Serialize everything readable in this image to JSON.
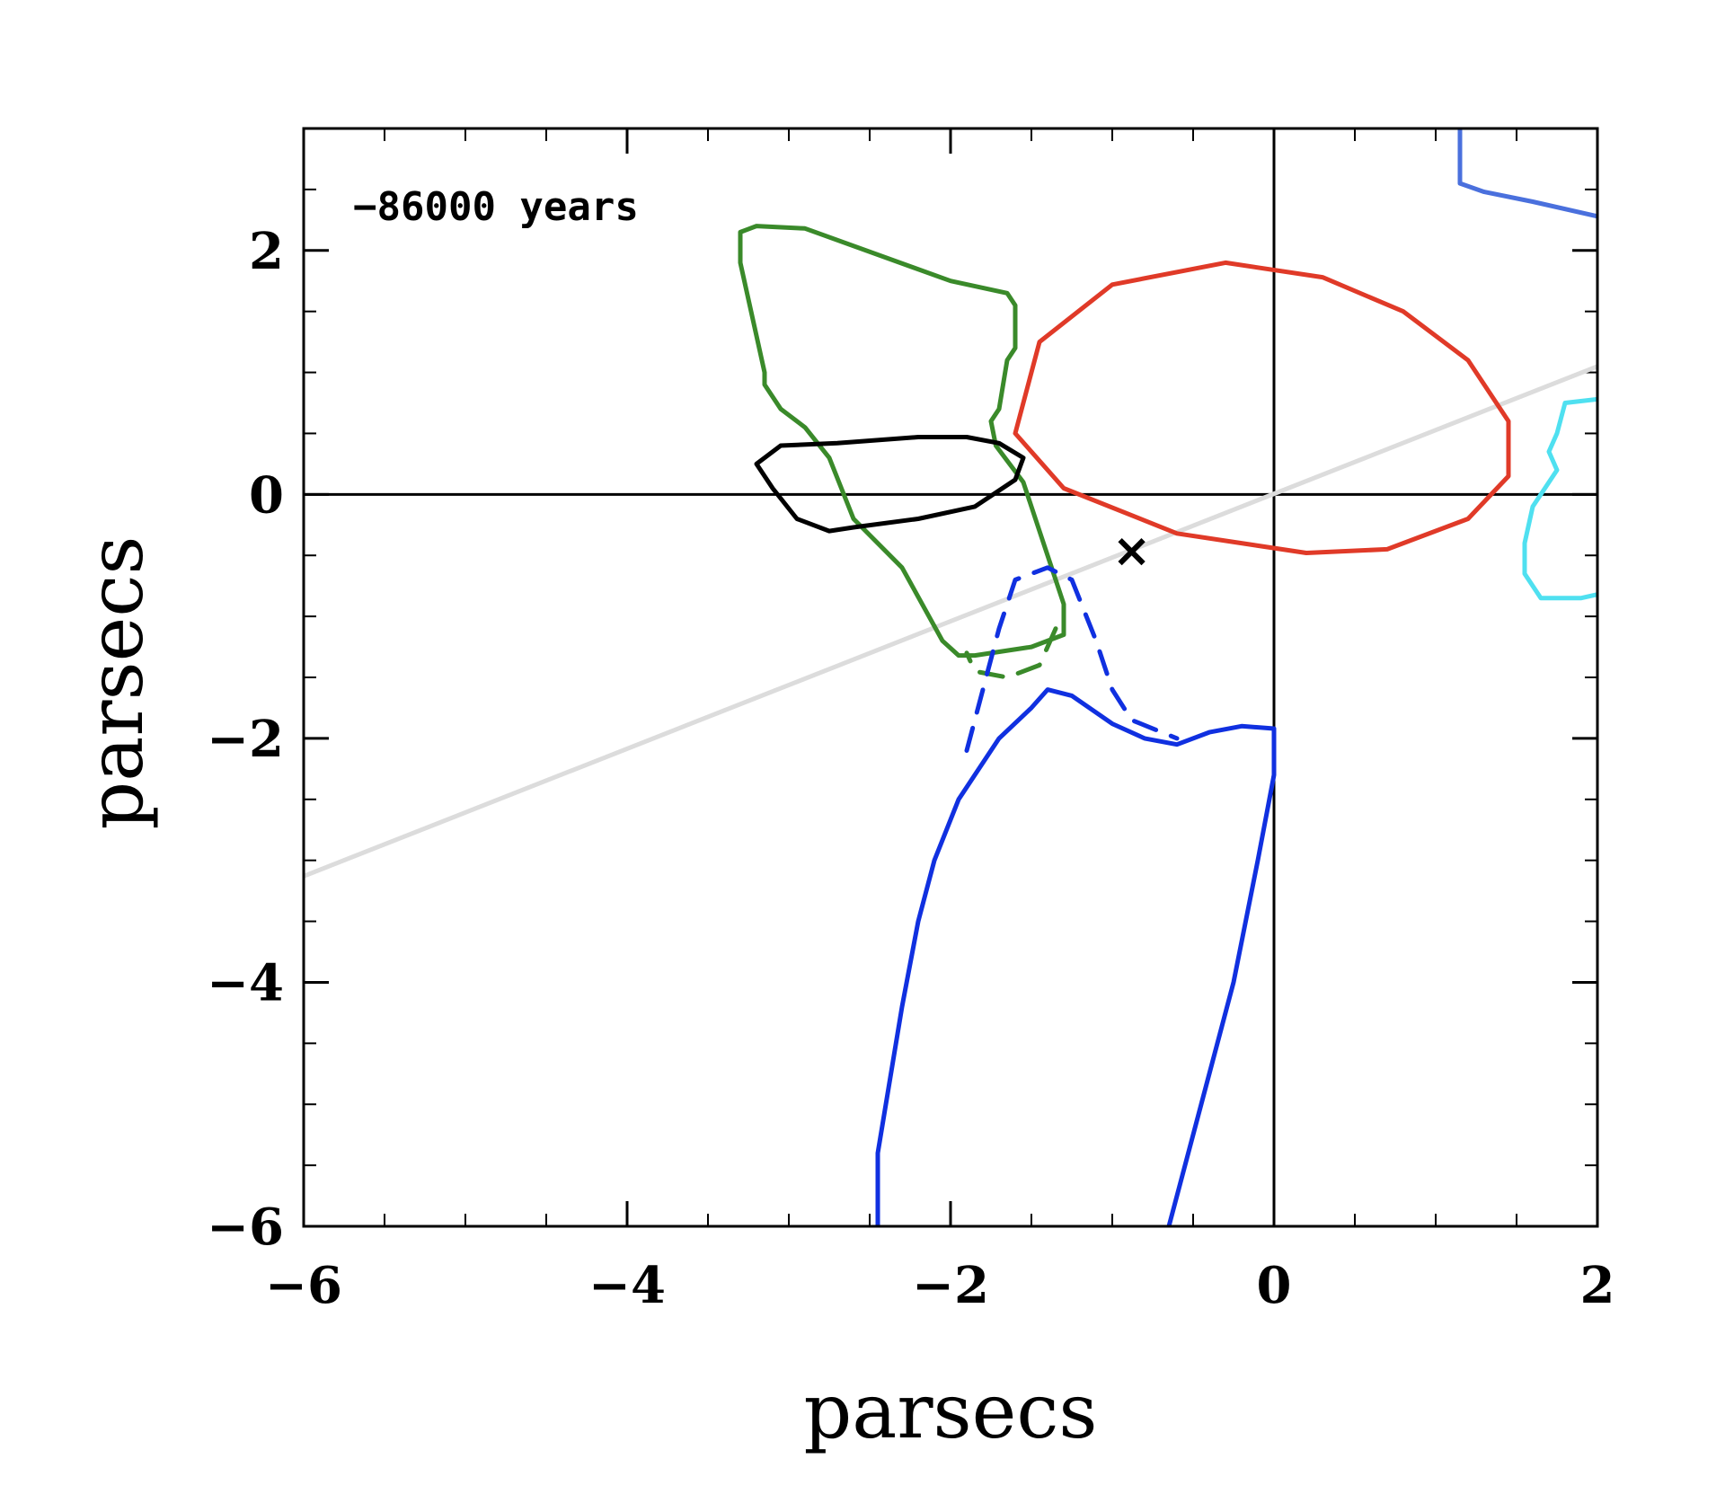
{
  "chart_data": {
    "type": "line",
    "title": "",
    "xlabel": "parsecs",
    "ylabel": "parsecs",
    "xlim": [
      -6,
      2
    ],
    "ylim": [
      -6,
      3
    ],
    "x_ticks": [
      -6,
      -4,
      -2,
      0,
      2
    ],
    "x_tick_labels": [
      "−6",
      "−4",
      "−2",
      "0",
      "2"
    ],
    "y_ticks": [
      -6,
      -4,
      -2,
      0,
      2
    ],
    "y_tick_labels": [
      "−6",
      "−4",
      "−2",
      "0",
      "2"
    ],
    "x_minor_step": 0.5,
    "y_minor_step": 0.5,
    "grid": false,
    "annotation": "−86000 years",
    "reference_lines": [
      {
        "axis": "x",
        "value": 0,
        "color": "#000000"
      },
      {
        "axis": "y",
        "value": 0,
        "color": "#000000"
      }
    ],
    "marker": {
      "symbol": "×",
      "x": -0.88,
      "y": -0.47,
      "color": "#000000"
    },
    "series": [
      {
        "key": "grey-line",
        "color": "#dcdcdc",
        "style": "solid",
        "closed": false,
        "points": [
          [
            -6,
            -3.13
          ],
          [
            2,
            1.05
          ]
        ]
      },
      {
        "key": "red-ellipse",
        "color": "#e03a28",
        "style": "solid",
        "closed": true,
        "points": [
          [
            -0.3,
            1.9
          ],
          [
            0.3,
            1.78
          ],
          [
            0.8,
            1.5
          ],
          [
            1.2,
            1.1
          ],
          [
            1.45,
            0.6
          ],
          [
            1.45,
            0.15
          ],
          [
            1.2,
            -0.2
          ],
          [
            0.7,
            -0.45
          ],
          [
            0.2,
            -0.48
          ],
          [
            -0.6,
            -0.32
          ],
          [
            -1.3,
            0.05
          ],
          [
            -1.6,
            0.5
          ],
          [
            -1.45,
            1.25
          ],
          [
            -1.0,
            1.72
          ]
        ]
      },
      {
        "key": "green-contour",
        "color": "#3a8a2a",
        "style": "solid",
        "closed": false,
        "points": [
          [
            -3.3,
            2.15
          ],
          [
            -3.2,
            2.2
          ],
          [
            -2.9,
            2.18
          ],
          [
            -2.0,
            1.75
          ],
          [
            -1.65,
            1.65
          ],
          [
            -1.6,
            1.55
          ],
          [
            -1.6,
            1.2
          ],
          [
            -1.65,
            1.1
          ],
          [
            -1.7,
            0.7
          ],
          [
            -1.75,
            0.6
          ],
          [
            -1.72,
            0.4
          ],
          [
            -1.55,
            0.1
          ],
          [
            -1.45,
            -0.3
          ],
          [
            -1.3,
            -0.9
          ],
          [
            -1.3,
            -1.15
          ],
          [
            -1.5,
            -1.25
          ],
          [
            -1.85,
            -1.32
          ],
          [
            -1.95,
            -1.32
          ],
          [
            -2.05,
            -1.2
          ],
          [
            -2.3,
            -0.6
          ],
          [
            -2.6,
            -0.2
          ],
          [
            -2.75,
            0.3
          ],
          [
            -2.9,
            0.55
          ],
          [
            -3.05,
            0.7
          ],
          [
            -3.15,
            0.9
          ],
          [
            -3.15,
            1.0
          ],
          [
            -3.2,
            1.3
          ],
          [
            -3.3,
            1.9
          ],
          [
            -3.3,
            2.15
          ]
        ]
      },
      {
        "key": "green-dashed",
        "color": "#3a8a2a",
        "style": "dashed",
        "closed": false,
        "points": [
          [
            -1.35,
            -1.1
          ],
          [
            -1.45,
            -1.4
          ],
          [
            -1.65,
            -1.5
          ],
          [
            -1.85,
            -1.45
          ],
          [
            -1.9,
            -1.3
          ]
        ]
      },
      {
        "key": "black-contour",
        "color": "#000000",
        "style": "solid",
        "closed": true,
        "points": [
          [
            -2.7,
            0.42
          ],
          [
            -2.2,
            0.47
          ],
          [
            -1.9,
            0.47
          ],
          [
            -1.7,
            0.42
          ],
          [
            -1.55,
            0.3
          ],
          [
            -1.6,
            0.12
          ],
          [
            -1.85,
            -0.1
          ],
          [
            -2.2,
            -0.2
          ],
          [
            -2.6,
            -0.27
          ],
          [
            -2.75,
            -0.3
          ],
          [
            -2.95,
            -0.2
          ],
          [
            -3.1,
            0.05
          ],
          [
            -3.2,
            0.25
          ],
          [
            -3.05,
            0.4
          ]
        ]
      },
      {
        "key": "blue-contour",
        "color": "#1030e0",
        "style": "solid",
        "closed": false,
        "points": [
          [
            -2.45,
            -6
          ],
          [
            -2.45,
            -5.4
          ],
          [
            -2.4,
            -5.0
          ],
          [
            -2.3,
            -4.2
          ],
          [
            -2.2,
            -3.5
          ],
          [
            -2.1,
            -3.0
          ],
          [
            -1.95,
            -2.5
          ],
          [
            -1.7,
            -2.0
          ],
          [
            -1.5,
            -1.75
          ],
          [
            -1.4,
            -1.6
          ],
          [
            -1.25,
            -1.65
          ],
          [
            -1.0,
            -1.88
          ],
          [
            -0.8,
            -2.0
          ],
          [
            -0.6,
            -2.05
          ],
          [
            -0.4,
            -1.95
          ],
          [
            -0.2,
            -1.9
          ],
          [
            0,
            -1.92
          ],
          [
            0,
            -2.3
          ],
          [
            -0.1,
            -3.0
          ],
          [
            -0.25,
            -4.0
          ],
          [
            -0.45,
            -5.0
          ],
          [
            -0.65,
            -6
          ]
        ]
      },
      {
        "key": "blue-dashed",
        "color": "#1030e0",
        "style": "dashed",
        "closed": false,
        "points": [
          [
            -1.9,
            -2.1
          ],
          [
            -1.8,
            -1.6
          ],
          [
            -1.7,
            -1.1
          ],
          [
            -1.6,
            -0.7
          ],
          [
            -1.4,
            -0.6
          ],
          [
            -1.25,
            -0.7
          ],
          [
            -1.1,
            -1.2
          ],
          [
            -1.0,
            -1.6
          ],
          [
            -0.88,
            -1.85
          ],
          [
            -0.6,
            -2.0
          ]
        ]
      },
      {
        "key": "mid-blue-contour",
        "color": "#4a70dd",
        "style": "solid",
        "closed": false,
        "points": [
          [
            1.15,
            3.0
          ],
          [
            1.15,
            2.55
          ],
          [
            1.3,
            2.48
          ],
          [
            1.6,
            2.4
          ],
          [
            2.0,
            2.28
          ]
        ]
      },
      {
        "key": "cyan-contour",
        "color": "#4fe0f0",
        "style": "solid",
        "closed": false,
        "points": [
          [
            2.0,
            0.78
          ],
          [
            1.8,
            0.75
          ],
          [
            1.75,
            0.5
          ],
          [
            1.7,
            0.35
          ],
          [
            1.75,
            0.2
          ],
          [
            1.6,
            -0.1
          ],
          [
            1.55,
            -0.4
          ],
          [
            1.55,
            -0.65
          ],
          [
            1.65,
            -0.85
          ],
          [
            1.9,
            -0.85
          ],
          [
            2.0,
            -0.82
          ]
        ]
      }
    ]
  }
}
